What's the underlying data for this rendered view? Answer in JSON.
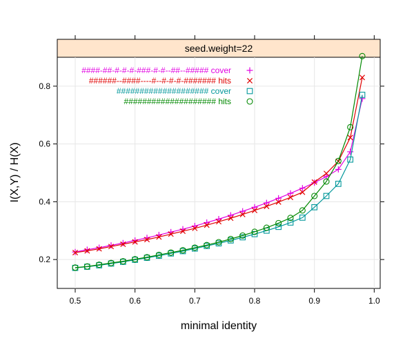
{
  "chart_data": {
    "type": "line",
    "panel_title": "seed.weight=22",
    "xlabel": "minimal identity",
    "ylabel": "I(X,Y) / H(X)",
    "xlim": [
      0.47,
      1.01
    ],
    "ylim": [
      0.1,
      0.9
    ],
    "x_ticks": [
      0.5,
      0.6,
      0.7,
      0.8,
      0.9,
      1.0
    ],
    "x_tick_labels": [
      "0.5",
      "0.6",
      "0.7",
      "0.8",
      "0.9",
      "1.0"
    ],
    "y_ticks": [
      0.2,
      0.4,
      0.6,
      0.8
    ],
    "y_tick_labels": [
      "0.2",
      "0.4",
      "0.6",
      "0.8"
    ],
    "grid": true,
    "legend_position": "top-left",
    "x": [
      0.5,
      0.52,
      0.54,
      0.56,
      0.58,
      0.6,
      0.62,
      0.64,
      0.66,
      0.68,
      0.7,
      0.72,
      0.74,
      0.76,
      0.78,
      0.8,
      0.82,
      0.84,
      0.86,
      0.88,
      0.9,
      0.92,
      0.94,
      0.96,
      0.98
    ],
    "series": [
      {
        "name": "####-##-#-#-#-###-#-#--##--##### cover",
        "color": "#e100e1",
        "marker": "plus",
        "values": [
          0.226,
          0.234,
          0.241,
          0.249,
          0.257,
          0.266,
          0.275,
          0.285,
          0.295,
          0.305,
          0.316,
          0.328,
          0.34,
          0.353,
          0.367,
          0.381,
          0.396,
          0.412,
          0.429,
          0.447,
          0.466,
          0.487,
          0.512,
          0.573,
          0.757
        ]
      },
      {
        "name": "######--####----#--#-#-#-####### hits",
        "color": "#e00000",
        "marker": "x",
        "values": [
          0.224,
          0.23,
          0.237,
          0.245,
          0.253,
          0.261,
          0.269,
          0.278,
          0.288,
          0.298,
          0.308,
          0.319,
          0.331,
          0.343,
          0.356,
          0.37,
          0.384,
          0.399,
          0.415,
          0.433,
          0.468,
          0.498,
          0.54,
          0.622,
          0.83
        ]
      },
      {
        "name": "#################### cover",
        "color": "#00979a",
        "marker": "square",
        "values": [
          0.171,
          0.175,
          0.18,
          0.186,
          0.192,
          0.199,
          0.206,
          0.213,
          0.221,
          0.229,
          0.238,
          0.247,
          0.256,
          0.266,
          0.277,
          0.288,
          0.3,
          0.313,
          0.328,
          0.345,
          0.381,
          0.42,
          0.462,
          0.546,
          0.77
        ]
      },
      {
        "name": "#################### hits",
        "color": "#008800",
        "marker": "circle",
        "values": [
          0.172,
          0.176,
          0.182,
          0.188,
          0.194,
          0.201,
          0.208,
          0.216,
          0.224,
          0.232,
          0.241,
          0.25,
          0.26,
          0.271,
          0.283,
          0.296,
          0.31,
          0.326,
          0.344,
          0.37,
          0.42,
          0.47,
          0.541,
          0.658,
          0.904
        ]
      }
    ]
  }
}
